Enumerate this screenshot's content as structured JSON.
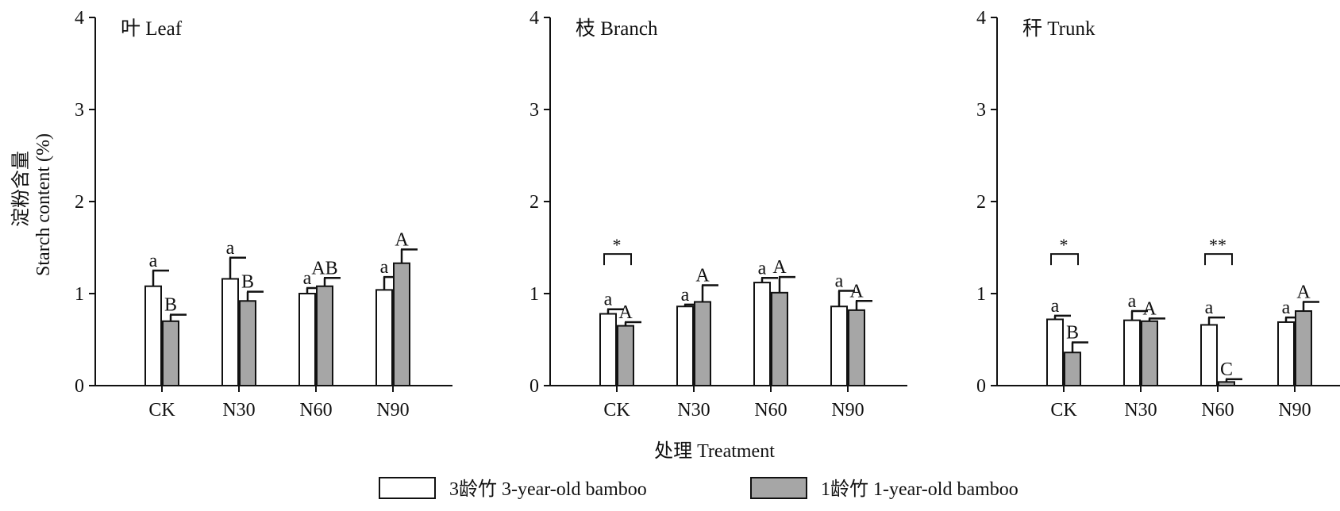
{
  "figure": {
    "ylabel_cn": "淀粉含量",
    "ylabel_en": "Starch content (%)",
    "xlabel": "处理 Treatment",
    "legend": [
      {
        "label": "3龄竹 3-year-old bamboo",
        "color": "#ffffff"
      },
      {
        "label": "1龄竹 1-year-old bamboo",
        "color": "#a6a6a6"
      }
    ],
    "colors": {
      "three_year": "#ffffff",
      "one_year": "#a6a6a6",
      "stroke": "#111111"
    }
  },
  "chart_data": [
    {
      "type": "bar",
      "title": "叶 Leaf",
      "categories": [
        "CK",
        "N30",
        "N60",
        "N90"
      ],
      "ylim": [
        0,
        4
      ],
      "yticks": [
        "0",
        "1",
        "2",
        "3",
        "4"
      ],
      "series": [
        {
          "name": "3龄竹 3-year-old bamboo",
          "values": [
            1.08,
            1.16,
            1.0,
            1.04
          ],
          "errors": [
            0.17,
            0.23,
            0.06,
            0.14
          ],
          "letters": [
            "a",
            "a",
            "a",
            "a"
          ]
        },
        {
          "name": "1龄竹 1-year-old bamboo",
          "values": [
            0.7,
            0.92,
            1.08,
            1.33
          ],
          "errors": [
            0.07,
            0.1,
            0.09,
            0.15
          ],
          "letters": [
            "B",
            "B",
            "AB",
            "A"
          ]
        }
      ],
      "significance": []
    },
    {
      "type": "bar",
      "title": "枝 Branch",
      "categories": [
        "CK",
        "N30",
        "N60",
        "N90"
      ],
      "ylim": [
        0,
        4
      ],
      "yticks": [
        "0",
        "1",
        "2",
        "3",
        "4"
      ],
      "series": [
        {
          "name": "3龄竹 3-year-old bamboo",
          "values": [
            0.78,
            0.86,
            1.12,
            0.86
          ],
          "errors": [
            0.05,
            0.02,
            0.05,
            0.17
          ],
          "letters": [
            "a",
            "a",
            "a",
            "a"
          ]
        },
        {
          "name": "1龄竹 1-year-old bamboo",
          "values": [
            0.65,
            0.91,
            1.01,
            0.82
          ],
          "errors": [
            0.04,
            0.18,
            0.17,
            0.1
          ],
          "letters": [
            "A",
            "A",
            "A",
            "A"
          ]
        }
      ],
      "significance": [
        {
          "category": "CK",
          "label": "*"
        }
      ]
    },
    {
      "type": "bar",
      "title": "秆 Trunk",
      "categories": [
        "CK",
        "N30",
        "N60",
        "N90"
      ],
      "ylim": [
        0,
        4
      ],
      "yticks": [
        "0",
        "1",
        "2",
        "3",
        "4"
      ],
      "series": [
        {
          "name": "3龄竹 3-year-old bamboo",
          "values": [
            0.72,
            0.71,
            0.66,
            0.69
          ],
          "errors": [
            0.04,
            0.1,
            0.08,
            0.05
          ],
          "letters": [
            "a",
            "a",
            "a",
            "a"
          ]
        },
        {
          "name": "1龄竹 1-year-old bamboo",
          "values": [
            0.36,
            0.7,
            0.04,
            0.81
          ],
          "errors": [
            0.11,
            0.03,
            0.03,
            0.1
          ],
          "letters": [
            "B",
            "A",
            "C",
            "A"
          ]
        }
      ],
      "significance": [
        {
          "category": "CK",
          "label": "*"
        },
        {
          "category": "N60",
          "label": "**"
        }
      ]
    }
  ]
}
